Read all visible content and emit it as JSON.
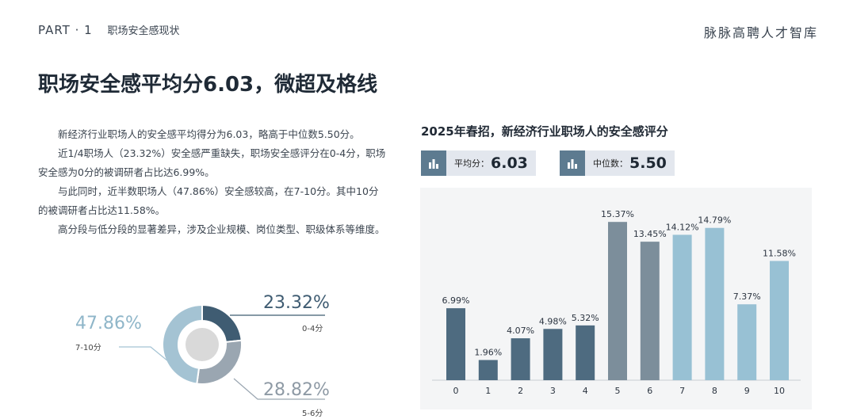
{
  "header": {
    "part": "PART · 1",
    "section": "职场安全感现状",
    "brand": "脉脉高聘人才智库"
  },
  "title": "职场安全感平均分6.03，微超及格线",
  "paragraphs": [
    "新经济行业职场人的安全感平均得分为6.03，略高于中位数5.50分。",
    "近1/4职场人（23.32%）安全感严重缺失，职场安全感评分在0-4分，职场安全感为0分的被调研者占比达6.99%。",
    "与此同时，近半数职场人（47.86%）安全感较高，在7-10分。其中10分的被调研者占比达11.58%。",
    "高分段与低分段的显著差异，涉及企业规模、岗位类型、职级体系等维度。"
  ],
  "donut": {
    "segments": [
      {
        "label": "0-4分",
        "pct": "23.32%",
        "value": 23.32,
        "color": "#3f5c72"
      },
      {
        "label": "5-6分",
        "pct": "28.82%",
        "value": 28.82,
        "color": "#9aa6b1"
      },
      {
        "label": "7-10分",
        "pct": "47.86%",
        "value": 47.86,
        "color": "#a4c3d3"
      }
    ]
  },
  "badges": {
    "avg_label": "平均分：",
    "avg_value": "6.03",
    "median_label": "中位数：",
    "median_value": "5.50",
    "icon": "bar-chart-icon"
  },
  "chart_data": {
    "type": "bar",
    "title": "2025年春招，新经济行业职场人的安全感评分",
    "categories": [
      "0",
      "1",
      "2",
      "3",
      "4",
      "5",
      "6",
      "7",
      "8",
      "9",
      "10"
    ],
    "values": [
      6.99,
      1.96,
      4.07,
      4.98,
      5.32,
      15.37,
      13.45,
      14.12,
      14.79,
      7.37,
      11.58
    ],
    "value_labels": [
      "6.99%",
      "1.96%",
      "4.07%",
      "4.98%",
      "5.32%",
      "15.37%",
      "13.45%",
      "14.12%",
      "14.79%",
      "7.37%",
      "11.58%"
    ],
    "colors": [
      "#4e6b80",
      "#4e6b80",
      "#4e6b80",
      "#4e6b80",
      "#4e6b80",
      "#7c8e9b",
      "#7c8e9b",
      "#98c1d4",
      "#98c1d4",
      "#98c1d4",
      "#98c1d4"
    ],
    "xlabel": "",
    "ylabel": "",
    "ylim": [
      0,
      16
    ],
    "grid": false,
    "legend": "none"
  }
}
